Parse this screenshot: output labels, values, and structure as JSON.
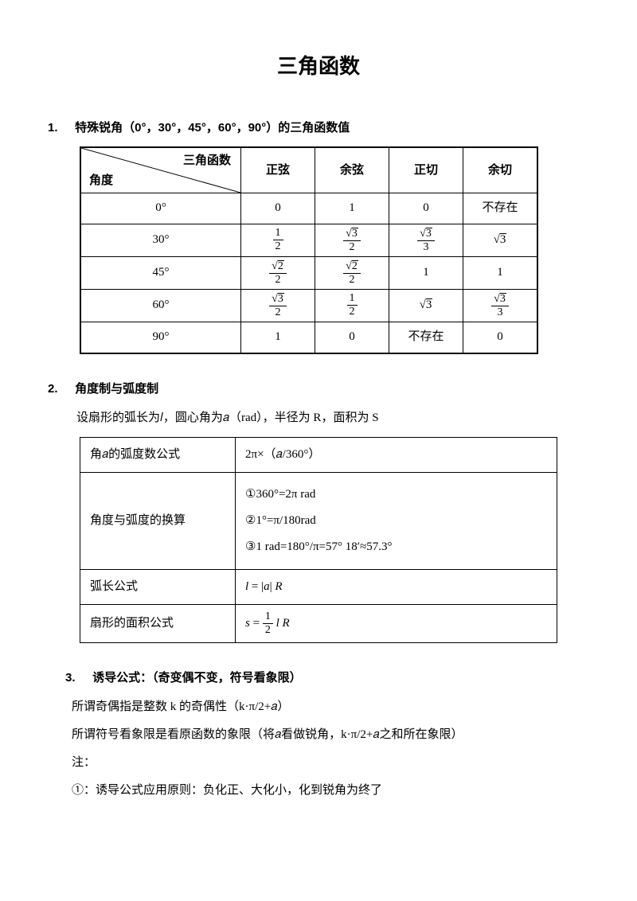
{
  "title": "三角函数",
  "section1": {
    "num": "1.",
    "heading": "特殊锐角（0°，30°，45°，60°，90°）的三角函数值",
    "table": {
      "diag_top": "三角函数",
      "diag_bot": "角度",
      "col_headers": [
        "正弦",
        "余弦",
        "正切",
        "余切"
      ],
      "rows": [
        {
          "angle": "0°",
          "cells": [
            "0",
            "1",
            "0",
            "不存在"
          ]
        },
        {
          "angle": "30°",
          "cells": [
            "frac:1/2",
            "frac:√3/2",
            "frac:√3/3",
            "sqrt:3"
          ]
        },
        {
          "angle": "45°",
          "cells": [
            "frac:√2/2",
            "frac:√2/2",
            "1",
            "1"
          ]
        },
        {
          "angle": "60°",
          "cells": [
            "frac:√3/2",
            "frac:1/2",
            "sqrt:3",
            "frac:√3/3"
          ]
        },
        {
          "angle": "90°",
          "cells": [
            "1",
            "0",
            "不存在",
            "0"
          ]
        }
      ]
    }
  },
  "section2": {
    "num": "2.",
    "heading": "角度制与弧度制",
    "intro": "设扇形的弧长为𝑙，圆心角为𝑎（rad），半径为 R，面积为 S",
    "rows": [
      {
        "label": "角𝑎的弧度数公式",
        "value": "2π×（𝑎/360°）"
      },
      {
        "label": "角度与弧度的换算",
        "value_lines": [
          "①360°=2π rad",
          "②1°=π/180rad",
          "③1 rad=180°/π=57° 18′≈57.3°"
        ]
      },
      {
        "label": "弧长公式",
        "formula_html": "<span class='math-i'>l</span> = |<span class='math-i'>a</span>| <span class='math-i'>R</span>"
      },
      {
        "label": "扇形的面积公式",
        "formula_html": "<span class='math-i'>s</span> = <span class='frac'><span class='n'>1</span><span class='d'>2</span></span> <span class='math-i'>l R</span>"
      }
    ]
  },
  "section3": {
    "num": "3.",
    "heading": "诱导公式：（奇变偶不变，符号看象限）",
    "lines": [
      "所谓奇偶指是整数 k 的奇偶性（k·π/2+𝑎）",
      "所谓符号看象限是看原函数的象限（将𝑎看做锐角，k·π/2+𝑎之和所在象限）",
      "注：",
      "①：诱导公式应用原则：负化正、大化小，化到锐角为终了"
    ]
  }
}
